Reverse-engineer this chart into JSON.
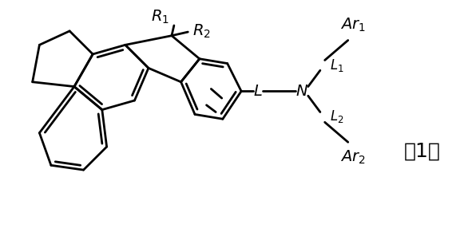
{
  "background_color": "#ffffff",
  "figure_width": 5.81,
  "figure_height": 3.06,
  "dpi": 100,
  "lw": 2.0,
  "font_size": 12,
  "font_size_large": 14,
  "font_size_num": 18
}
